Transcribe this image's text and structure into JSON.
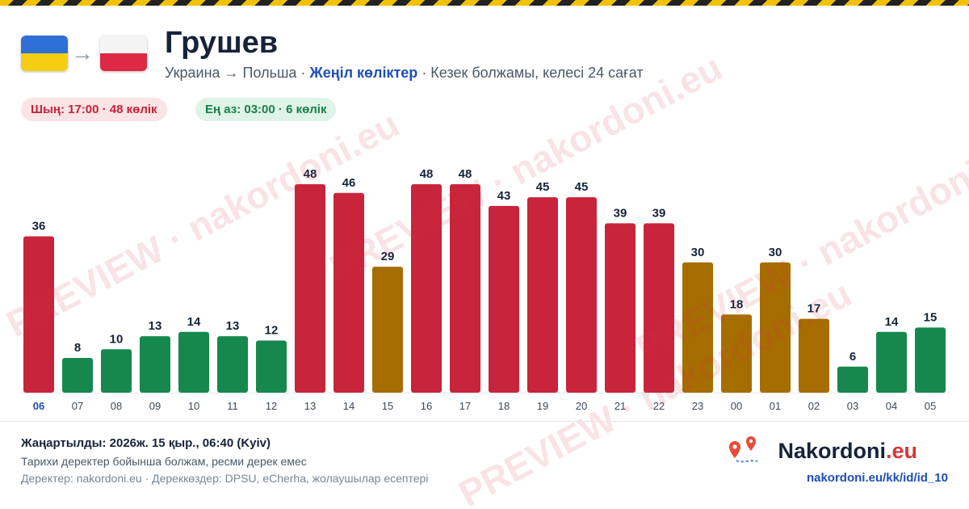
{
  "header": {
    "title": "Грушев",
    "route": "Украина → Польша ·",
    "vehicle": "Жеңіл көліктер",
    "forecast": "· Кезек болжамы, келесі 24 сағат",
    "peak": "Шың: 17:00 · 48 көлік",
    "low": "Ең аз: 03:00 · 6 көлік"
  },
  "footer": {
    "updated": "Жаңартылды: 2026ж. 15 қыр., 06:40 (Kyiv)",
    "note": "Тарихи деректер бойынша болжам, ресми дерек емес",
    "sources": "Деректер: nakordoni.eu · Дереккөздер: DPSU, eCherha, жолаушылар есептері",
    "brand_name": "Nakordoni",
    "brand_tld": ".eu",
    "url": "nakordoni.eu/kk/id/id_10"
  },
  "watermark": "PREVIEW · nakordoni.eu",
  "colors": {
    "high": "#c8243b",
    "medium": "#a66d00",
    "low": "#17884d",
    "current_tick": "#1d4fb3"
  },
  "chart_data": {
    "type": "bar",
    "categories": [
      "06",
      "07",
      "08",
      "09",
      "10",
      "11",
      "12",
      "13",
      "14",
      "15",
      "16",
      "17",
      "18",
      "19",
      "20",
      "21",
      "22",
      "23",
      "00",
      "01",
      "02",
      "03",
      "04",
      "05"
    ],
    "values": [
      36,
      8,
      10,
      13,
      14,
      13,
      12,
      48,
      46,
      29,
      48,
      48,
      43,
      45,
      45,
      39,
      39,
      30,
      18,
      30,
      17,
      6,
      14,
      15
    ],
    "levels": [
      "high",
      "low",
      "low",
      "low",
      "low",
      "low",
      "low",
      "high",
      "high",
      "medium",
      "high",
      "high",
      "high",
      "high",
      "high",
      "high",
      "high",
      "medium",
      "medium",
      "medium",
      "medium",
      "low",
      "low",
      "low"
    ],
    "current_category": "06",
    "ylim": [
      0,
      50
    ],
    "grid": false,
    "legend": "none"
  }
}
